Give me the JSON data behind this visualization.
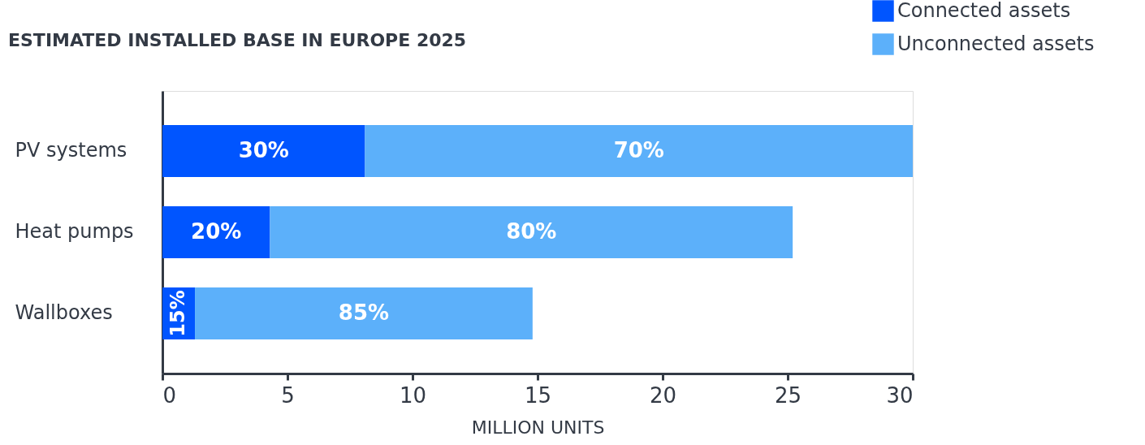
{
  "chart_data": {
    "type": "bar",
    "orientation": "horizontal",
    "stacked": true,
    "title": "ESTIMATED INSTALLED BASE IN EUROPE 2025",
    "xlabel": "MILLION UNITS",
    "categories": [
      "PV systems",
      "Heat pumps",
      "Wallboxes"
    ],
    "series": [
      {
        "name": "Connected assets",
        "color": "#0055ff",
        "values": [
          8.1,
          4.3,
          1.3
        ]
      },
      {
        "name": "Unconnected assets",
        "color": "#5cb0fa",
        "values": [
          21.9,
          20.9,
          13.5
        ]
      }
    ],
    "annotations": [
      "30%",
      "70%",
      "20%",
      "80%",
      "15%",
      "85%"
    ],
    "xlim": [
      0,
      30
    ],
    "xticks": [
      0,
      5,
      10,
      15,
      20,
      25,
      30
    ],
    "grid": false,
    "legend": "top right"
  }
}
